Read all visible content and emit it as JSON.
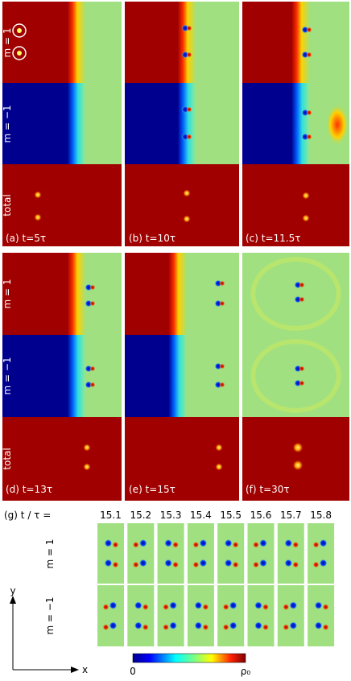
{
  "top_block": {
    "row_labels": [
      "m = 1",
      "m = −1",
      "total"
    ],
    "panel_labels": [
      "(a) t=5τ",
      "(b) t=10τ",
      "(c) t=11.5τ"
    ]
  },
  "bottom_block": {
    "row_labels": [
      "m = 1",
      "m = −1",
      "total"
    ],
    "panel_labels": [
      "(d) t=13τ",
      "(e) t=15τ",
      "(f) t=30τ"
    ]
  },
  "panel_g": {
    "label": "(g) t / τ =",
    "times": [
      "15.1",
      "15.2",
      "15.3",
      "15.4",
      "15.5",
      "15.6",
      "15.7",
      "15.8"
    ],
    "row_labels": [
      "m = 1",
      "m = −1"
    ]
  },
  "axes": {
    "y": "y",
    "x": "x"
  },
  "colorbar": {
    "min_label": "0",
    "max_label": "ρ₀"
  }
}
